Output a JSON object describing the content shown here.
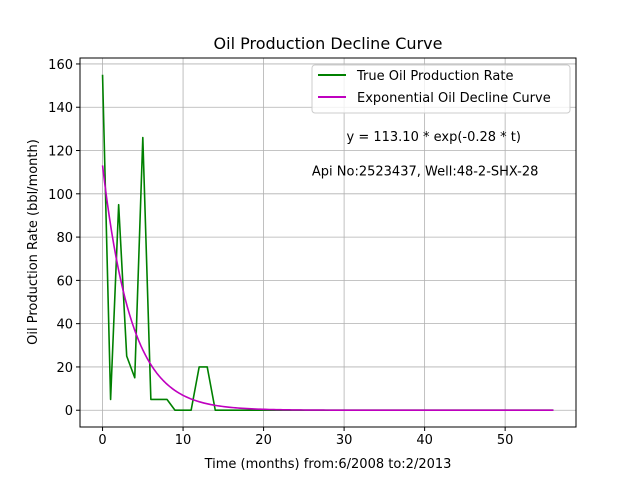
{
  "chart_data": {
    "type": "line",
    "title": "Oil Production Decline Curve",
    "xlabel": "Time (months) from:6/2008 to:2/2013",
    "ylabel": "Oil Production Rate (bbl/month)",
    "xlim": [
      -2.8,
      58.8
    ],
    "ylim": [
      -7.75,
      162.75
    ],
    "xticks": [
      0,
      10,
      20,
      30,
      40,
      50
    ],
    "yticks": [
      0,
      20,
      40,
      60,
      80,
      100,
      120,
      140,
      160
    ],
    "grid": true,
    "legend_position": "top-right",
    "annotations": [
      {
        "text": "y = 113.10 * exp(-0.28 * t)",
        "x": 30.3,
        "y": 124.5
      },
      {
        "text": "Api No:2523437, Well:48-2-SHX-28",
        "x": 26.0,
        "y": 108.5
      }
    ],
    "series": [
      {
        "name": "True Oil Production Rate",
        "color": "#008000",
        "x": [
          0,
          1,
          2,
          3,
          4,
          5,
          6,
          7,
          8,
          9,
          10,
          11,
          12,
          13,
          14,
          15,
          16,
          17,
          18,
          19,
          20,
          21,
          22,
          23,
          24,
          25,
          26,
          27,
          28,
          29,
          30,
          31,
          32,
          33,
          34,
          35,
          36,
          37,
          38,
          39,
          40,
          41,
          42,
          43,
          44,
          45,
          46,
          47,
          48,
          49,
          50,
          51,
          52,
          53,
          54,
          55,
          56
        ],
        "y": [
          155,
          5,
          95,
          25,
          15,
          126,
          5,
          5,
          5,
          0,
          0,
          0,
          20,
          20,
          0,
          0,
          0,
          0,
          0,
          0,
          0,
          0,
          0,
          0,
          0,
          0,
          0,
          0,
          0,
          0,
          0,
          0,
          0,
          0,
          0,
          0,
          0,
          0,
          0,
          0,
          0,
          0,
          0,
          0,
          0,
          0,
          0,
          0,
          0,
          0,
          0,
          0,
          0,
          0,
          0,
          0,
          0
        ]
      },
      {
        "name": "Exponential Oil Decline Curve",
        "color": "#bf00bf",
        "formula": {
          "a": 113.1,
          "b": -0.28
        },
        "x_range": [
          0,
          56
        ]
      }
    ]
  }
}
